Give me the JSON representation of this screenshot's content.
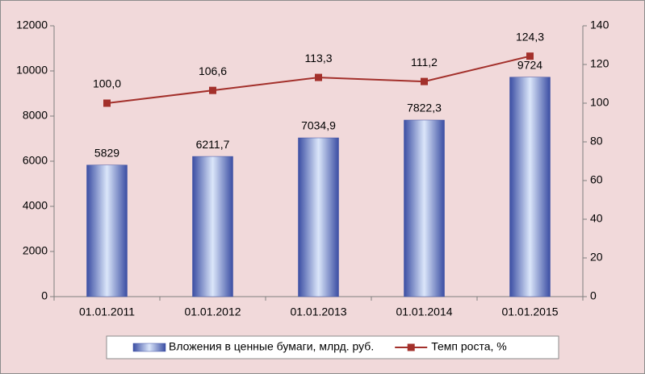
{
  "chart_data": {
    "type": "bar",
    "categories": [
      "01.01.2011",
      "01.01.2012",
      "01.01.2013",
      "01.01.2014",
      "01.01.2015"
    ],
    "series": [
      {
        "name": "Вложения в ценные бумаги, млрд. руб.",
        "type": "bar",
        "color": "#3b4ea3",
        "values": [
          5829,
          6211.7,
          7034.9,
          7822.3,
          9724
        ],
        "value_labels": [
          "5829",
          "6211,7",
          "7034,9",
          "7822,3",
          "9724"
        ]
      },
      {
        "name": "Темп роста, %",
        "type": "line",
        "axis": "y2",
        "color": "#a3302b",
        "values": [
          100.0,
          106.6,
          113.3,
          111.2,
          124.3
        ],
        "value_labels": [
          "100,0",
          "106,6",
          "113,3",
          "111,2",
          "124,3"
        ]
      }
    ],
    "ylim": [
      0,
      12000
    ],
    "yticks": [
      0,
      2000,
      4000,
      6000,
      8000,
      10000,
      12000
    ],
    "y2lim": [
      0,
      140
    ],
    "y2ticks": [
      0,
      20,
      40,
      60,
      80,
      100,
      120,
      140
    ],
    "grid": false,
    "legend": "bottom"
  }
}
